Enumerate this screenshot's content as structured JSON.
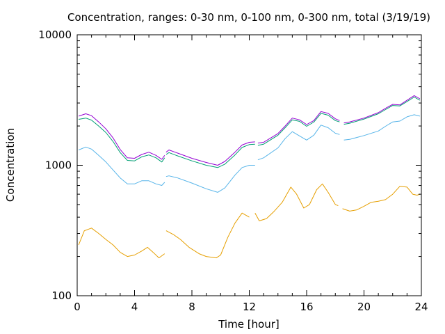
{
  "chart_data": {
    "type": "line",
    "title": "Concentration, ranges: 0-30 nm, 0-100 nm, 0-300 nm, total (3/19/19)",
    "xlabel": "Time [hour]",
    "ylabel": "Concentration",
    "xlim": [
      0,
      24
    ],
    "ylim": [
      100,
      10000
    ],
    "yscale": "log",
    "grid": false,
    "legend": "none",
    "x_ticks": [
      {
        "value": 0,
        "label": "0"
      },
      {
        "value": 4,
        "label": "4"
      },
      {
        "value": 8,
        "label": "8"
      },
      {
        "value": 12,
        "label": "12"
      },
      {
        "value": 16,
        "label": "16"
      },
      {
        "value": 20,
        "label": "20"
      },
      {
        "value": 24,
        "label": "24"
      }
    ],
    "y_ticks": [
      {
        "value": 100,
        "label": "100"
      },
      {
        "value": 1000,
        "label": "1000"
      },
      {
        "value": 10000,
        "label": "10000"
      }
    ],
    "series": [
      {
        "color": "#9400d3",
        "segments": [
          [
            [
              0.1,
              2380
            ],
            [
              0.6,
              2480
            ],
            [
              1.0,
              2400
            ],
            [
              1.5,
              2150
            ],
            [
              2.0,
              1900
            ],
            [
              2.5,
              1620
            ],
            [
              3.0,
              1320
            ],
            [
              3.5,
              1140
            ],
            [
              4.0,
              1130
            ],
            [
              4.5,
              1210
            ],
            [
              5.0,
              1260
            ],
            [
              5.5,
              1190
            ],
            [
              5.9,
              1110
            ],
            [
              6.1,
              1190
            ]
          ],
          [
            [
              6.2,
              1260
            ],
            [
              6.4,
              1310
            ],
            [
              7.0,
              1240
            ],
            [
              8.0,
              1130
            ],
            [
              9.0,
              1050
            ],
            [
              9.8,
              1000
            ],
            [
              10.3,
              1070
            ],
            [
              11.0,
              1260
            ],
            [
              11.5,
              1430
            ],
            [
              12.0,
              1500
            ],
            [
              12.4,
              1510
            ]
          ],
          [
            [
              12.6,
              1480
            ],
            [
              13.0,
              1500
            ],
            [
              14.0,
              1750
            ],
            [
              14.5,
              2000
            ],
            [
              15.0,
              2300
            ],
            [
              15.5,
              2230
            ],
            [
              16.0,
              2050
            ],
            [
              16.5,
              2200
            ],
            [
              17.0,
              2580
            ],
            [
              17.5,
              2500
            ],
            [
              18.0,
              2270
            ],
            [
              18.3,
              2200
            ]
          ],
          [
            [
              18.6,
              2110
            ],
            [
              19.0,
              2150
            ],
            [
              20.0,
              2300
            ],
            [
              21.0,
              2530
            ],
            [
              21.5,
              2730
            ],
            [
              22.0,
              2930
            ],
            [
              22.5,
              2900
            ],
            [
              23.0,
              3150
            ],
            [
              23.5,
              3420
            ],
            [
              23.9,
              3230
            ]
          ]
        ]
      },
      {
        "color": "#009e73",
        "segments": [
          [
            [
              0.1,
              2250
            ],
            [
              0.6,
              2300
            ],
            [
              1.0,
              2220
            ],
            [
              1.5,
              2000
            ],
            [
              2.0,
              1780
            ],
            [
              2.5,
              1520
            ],
            [
              3.0,
              1250
            ],
            [
              3.5,
              1090
            ],
            [
              4.0,
              1080
            ],
            [
              4.5,
              1160
            ],
            [
              5.0,
              1200
            ],
            [
              5.5,
              1140
            ],
            [
              5.9,
              1060
            ],
            [
              6.1,
              1140
            ]
          ],
          [
            [
              6.2,
              1210
            ],
            [
              6.4,
              1250
            ],
            [
              7.0,
              1180
            ],
            [
              8.0,
              1080
            ],
            [
              9.0,
              1000
            ],
            [
              9.8,
              960
            ],
            [
              10.3,
              1020
            ],
            [
              11.0,
              1200
            ],
            [
              11.5,
              1370
            ],
            [
              12.0,
              1440
            ],
            [
              12.4,
              1450
            ]
          ],
          [
            [
              12.6,
              1420
            ],
            [
              13.0,
              1450
            ],
            [
              14.0,
              1700
            ],
            [
              14.5,
              1940
            ],
            [
              15.0,
              2230
            ],
            [
              15.5,
              2170
            ],
            [
              16.0,
              1990
            ],
            [
              16.5,
              2140
            ],
            [
              17.0,
              2500
            ],
            [
              17.5,
              2420
            ],
            [
              18.0,
              2200
            ],
            [
              18.3,
              2150
            ]
          ],
          [
            [
              18.6,
              2060
            ],
            [
              19.0,
              2100
            ],
            [
              20.0,
              2260
            ],
            [
              21.0,
              2480
            ],
            [
              21.5,
              2670
            ],
            [
              22.0,
              2870
            ],
            [
              22.5,
              2850
            ],
            [
              23.0,
              3080
            ],
            [
              23.5,
              3330
            ],
            [
              23.9,
              3150
            ]
          ]
        ]
      },
      {
        "color": "#56b4e9",
        "segments": [
          [
            [
              0.1,
              1310
            ],
            [
              0.6,
              1380
            ],
            [
              1.0,
              1330
            ],
            [
              1.5,
              1190
            ],
            [
              2.0,
              1060
            ],
            [
              2.5,
              920
            ],
            [
              3.0,
              800
            ],
            [
              3.5,
              720
            ],
            [
              4.0,
              720
            ],
            [
              4.5,
              760
            ],
            [
              5.0,
              760
            ],
            [
              5.5,
              720
            ],
            [
              5.9,
              700
            ],
            [
              6.1,
              740
            ]
          ],
          [
            [
              6.2,
              820
            ],
            [
              6.4,
              830
            ],
            [
              7.0,
              800
            ],
            [
              8.0,
              730
            ],
            [
              9.0,
              660
            ],
            [
              9.8,
              620
            ],
            [
              10.3,
              670
            ],
            [
              11.0,
              840
            ],
            [
              11.5,
              960
            ],
            [
              12.0,
              1000
            ],
            [
              12.4,
              1000
            ]
          ],
          [
            [
              12.6,
              1100
            ],
            [
              13.0,
              1140
            ],
            [
              14.0,
              1360
            ],
            [
              14.5,
              1600
            ],
            [
              15.0,
              1810
            ],
            [
              15.5,
              1680
            ],
            [
              16.0,
              1560
            ],
            [
              16.5,
              1700
            ],
            [
              17.0,
              2030
            ],
            [
              17.5,
              1940
            ],
            [
              18.0,
              1760
            ],
            [
              18.3,
              1720
            ]
          ],
          [
            [
              18.6,
              1560
            ],
            [
              19.0,
              1580
            ],
            [
              20.0,
              1690
            ],
            [
              21.0,
              1830
            ],
            [
              21.5,
              1990
            ],
            [
              22.0,
              2150
            ],
            [
              22.5,
              2180
            ],
            [
              23.0,
              2350
            ],
            [
              23.5,
              2440
            ],
            [
              23.9,
              2380
            ]
          ]
        ]
      },
      {
        "color": "#e69f00",
        "segments": [
          [
            [
              0.1,
              245
            ],
            [
              0.5,
              315
            ],
            [
              1.0,
              330
            ],
            [
              1.5,
              300
            ],
            [
              2.0,
              270
            ],
            [
              2.5,
              245
            ],
            [
              3.0,
              215
            ],
            [
              3.5,
              200
            ],
            [
              4.0,
              205
            ],
            [
              4.5,
              220
            ],
            [
              4.9,
              235
            ],
            [
              5.3,
              215
            ],
            [
              5.7,
              195
            ],
            [
              6.1,
              210
            ]
          ],
          [
            [
              6.2,
              315
            ],
            [
              6.7,
              295
            ],
            [
              7.2,
              270
            ],
            [
              7.8,
              235
            ],
            [
              8.5,
              210
            ],
            [
              9.0,
              200
            ],
            [
              9.7,
              195
            ],
            [
              10.0,
              205
            ],
            [
              10.5,
              280
            ],
            [
              11.0,
              360
            ],
            [
              11.5,
              430
            ],
            [
              12.0,
              400
            ]
          ],
          [
            [
              12.4,
              430
            ],
            [
              12.7,
              375
            ],
            [
              13.2,
              390
            ],
            [
              13.7,
              440
            ],
            [
              14.3,
              520
            ],
            [
              14.9,
              680
            ],
            [
              15.3,
              600
            ],
            [
              15.8,
              470
            ],
            [
              16.2,
              500
            ],
            [
              16.7,
              650
            ],
            [
              17.1,
              720
            ],
            [
              17.5,
              620
            ],
            [
              18.0,
              500
            ],
            [
              18.2,
              490
            ]
          ],
          [
            [
              18.5,
              465
            ],
            [
              19.0,
              445
            ],
            [
              19.5,
              455
            ],
            [
              20.0,
              485
            ],
            [
              20.5,
              520
            ],
            [
              21.0,
              530
            ],
            [
              21.5,
              545
            ],
            [
              22.0,
              600
            ],
            [
              22.5,
              690
            ],
            [
              23.0,
              680
            ],
            [
              23.4,
              600
            ],
            [
              23.7,
              590
            ],
            [
              23.9,
              600
            ]
          ]
        ]
      }
    ]
  }
}
